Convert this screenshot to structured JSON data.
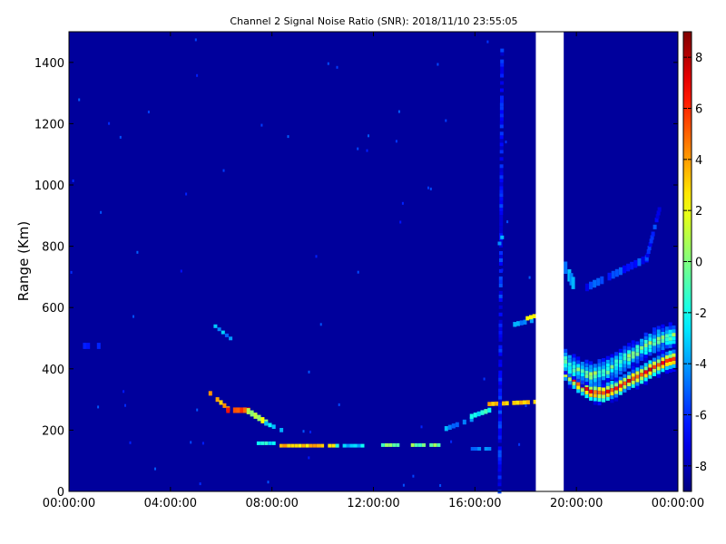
{
  "chart_data": {
    "type": "heatmap",
    "title": "Channel 2 Signal Noise Ratio (SNR): 2018/11/10 23:55:05",
    "xlabel": "",
    "ylabel": "Range (Km)",
    "x_tick_labels": [
      "00:00:00",
      "04:00:00",
      "08:00:00",
      "12:00:00",
      "16:00:00",
      "20:00:00",
      "00:00:00"
    ],
    "x_range_hours": [
      0,
      24
    ],
    "y_ticks": [
      0,
      200,
      400,
      600,
      800,
      1000,
      1200,
      1400
    ],
    "y_range": [
      0,
      1500
    ],
    "colorbar": {
      "colormap": "jet",
      "range": [
        -9,
        9
      ],
      "ticks": [
        -8,
        -6,
        -4,
        -2,
        0,
        2,
        4,
        6,
        8
      ]
    },
    "background_value": -8.5,
    "no_data_gap_hours": [
      18.4,
      19.5
    ],
    "features": [
      {
        "kind": "segment",
        "x": [
          5.5,
          6.2
        ],
        "y": [
          320,
          270
        ],
        "value": 4,
        "thickness": 15
      },
      {
        "kind": "segment",
        "x": [
          6.2,
          7.0
        ],
        "y": [
          265,
          265
        ],
        "value": 6,
        "thickness": 18
      },
      {
        "kind": "segment",
        "x": [
          7.0,
          7.7
        ],
        "y": [
          262,
          225
        ],
        "value": 1,
        "thickness": 20
      },
      {
        "kind": "segment",
        "x": [
          7.7,
          8.3
        ],
        "y": [
          222,
          200
        ],
        "value": -3,
        "thickness": 14
      },
      {
        "kind": "segment",
        "x": [
          7.4,
          8.0
        ],
        "y": [
          158,
          158
        ],
        "value": -2,
        "thickness": 10
      },
      {
        "kind": "segment",
        "x": [
          8.0,
          10.5
        ],
        "y": [
          150,
          150
        ],
        "value": 3,
        "thickness": 10
      },
      {
        "kind": "segment",
        "x": [
          10.5,
          11.5
        ],
        "y": [
          150,
          150
        ],
        "value": -3,
        "thickness": 10
      },
      {
        "kind": "segment",
        "x": [
          12.3,
          14.5
        ],
        "y": [
          152,
          152
        ],
        "value": 0,
        "thickness": 10
      },
      {
        "kind": "segment",
        "x": [
          15.7,
          16.5
        ],
        "y": [
          140,
          140
        ],
        "value": -4,
        "thickness": 10
      },
      {
        "kind": "segment",
        "x": [
          14.8,
          15.8
        ],
        "y": [
          205,
          235
        ],
        "value": -4,
        "thickness": 16
      },
      {
        "kind": "segment",
        "x": [
          15.8,
          16.5
        ],
        "y": [
          245,
          265
        ],
        "value": -2,
        "thickness": 16
      },
      {
        "kind": "segment",
        "x": [
          16.5,
          18.3
        ],
        "y": [
          285,
          292
        ],
        "value": 3,
        "thickness": 14
      },
      {
        "kind": "segment",
        "x": [
          17.5,
          18.3
        ],
        "y": [
          545,
          560
        ],
        "value": -4,
        "thickness": 16
      },
      {
        "kind": "segment",
        "x": [
          18.0,
          18.4
        ],
        "y": [
          565,
          575
        ],
        "value": 3,
        "thickness": 14
      },
      {
        "kind": "segment",
        "x": [
          5.7,
          6.3
        ],
        "y": [
          540,
          500
        ],
        "value": -4,
        "thickness": 10
      },
      {
        "kind": "segment",
        "x": [
          0.55,
          1.1
        ],
        "y": [
          475,
          475
        ],
        "value": -6,
        "thickness": 20
      },
      {
        "kind": "segment",
        "x": [
          16.9,
          17.0
        ],
        "y": [
          0,
          1440
        ],
        "value": -6.5,
        "thickness": 10
      },
      {
        "kind": "segment",
        "x": [
          16.9,
          17.0
        ],
        "y": [
          810,
          830
        ],
        "value": -3,
        "thickness": 10
      },
      {
        "kind": "segment",
        "x": [
          19.5,
          19.8
        ],
        "y": [
          730,
          680
        ],
        "value": -3.5,
        "thickness": 40
      },
      {
        "kind": "segment",
        "x": [
          20.2,
          22.7
        ],
        "y": [
          660,
          760
        ],
        "value": -6,
        "thickness": 25
      },
      {
        "kind": "segment",
        "x": [
          22.7,
          23.2
        ],
        "y": [
          760,
          920
        ],
        "value": -6.5,
        "thickness": 15
      },
      {
        "kind": "band",
        "x": [
          19.5,
          20.0,
          20.5,
          21.0,
          21.5,
          22.0,
          22.5,
          23.0,
          23.5,
          23.9
        ],
        "y": [
          390,
          350,
          325,
          320,
          335,
          360,
          380,
          405,
          425,
          435
        ],
        "value_center": 6.5,
        "half_width": 35
      },
      {
        "kind": "band",
        "x": [
          19.5,
          20.0,
          20.5,
          21.0,
          21.5,
          22.0,
          22.5,
          23.0,
          23.5,
          23.9
        ],
        "y": [
          420,
          395,
          380,
          390,
          410,
          440,
          465,
          490,
          505,
          510
        ],
        "value_center": 0,
        "half_width": 45
      }
    ]
  }
}
